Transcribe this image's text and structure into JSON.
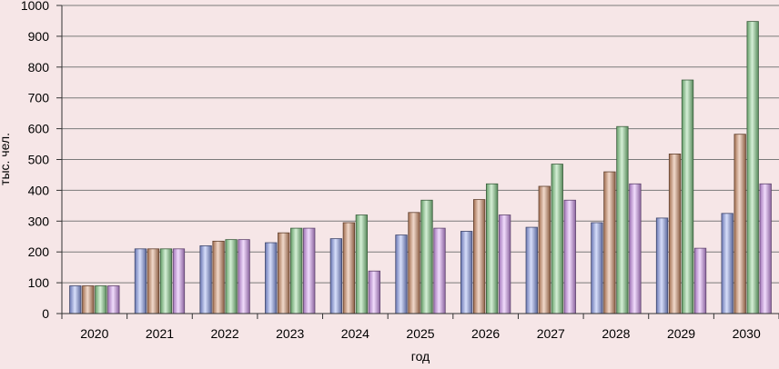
{
  "chart_data": {
    "type": "bar",
    "title": "",
    "xlabel": "год",
    "ylabel": "тыс. чел.",
    "ylim": [
      0,
      1000
    ],
    "y_ticks": [
      0,
      100,
      200,
      300,
      400,
      500,
      600,
      700,
      800,
      900,
      1000
    ],
    "grid": true,
    "legend": "none",
    "categories": [
      "2020",
      "2021",
      "2022",
      "2023",
      "2024",
      "2025",
      "2026",
      "2027",
      "2028",
      "2029",
      "2030"
    ],
    "series": [
      {
        "color": "#8ea0f0",
        "values": [
          90,
          210,
          220,
          230,
          243,
          255,
          267,
          280,
          295,
          310,
          325
        ]
      },
      {
        "color": "#d8926a",
        "values": [
          90,
          210,
          235,
          262,
          295,
          328,
          370,
          413,
          460,
          518,
          582
        ]
      },
      {
        "color": "#86d28a",
        "values": [
          90,
          210,
          240,
          277,
          320,
          368,
          421,
          485,
          607,
          758,
          948
        ]
      },
      {
        "color": "#d69af5",
        "values": [
          90,
          210,
          240,
          277,
          138,
          277,
          320,
          368,
          421,
          212,
          421
        ]
      }
    ]
  }
}
